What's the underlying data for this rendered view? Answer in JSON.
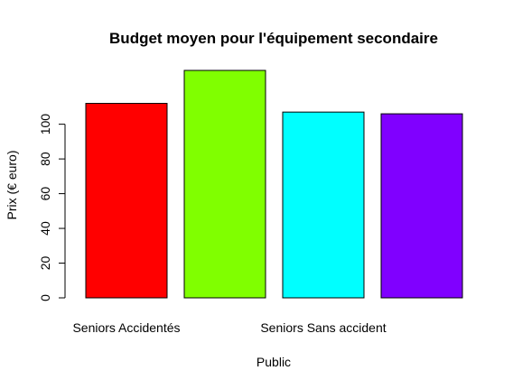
{
  "chart_data": {
    "type": "bar",
    "title": "Budget moyen pour l'équipement secondaire",
    "xlabel": "Public",
    "ylabel": "Prix (€ euro)",
    "categories": [
      "Seniors Accidentés",
      "",
      "Seniors Sans accident",
      ""
    ],
    "values": [
      112,
      131,
      107,
      106
    ],
    "colors": [
      "#ff0000",
      "#80ff00",
      "#00ffff",
      "#8000ff"
    ],
    "yticks": [
      0,
      20,
      40,
      60,
      80,
      100
    ],
    "ylim": [
      0,
      131
    ],
    "grid": false,
    "legend": "none"
  }
}
